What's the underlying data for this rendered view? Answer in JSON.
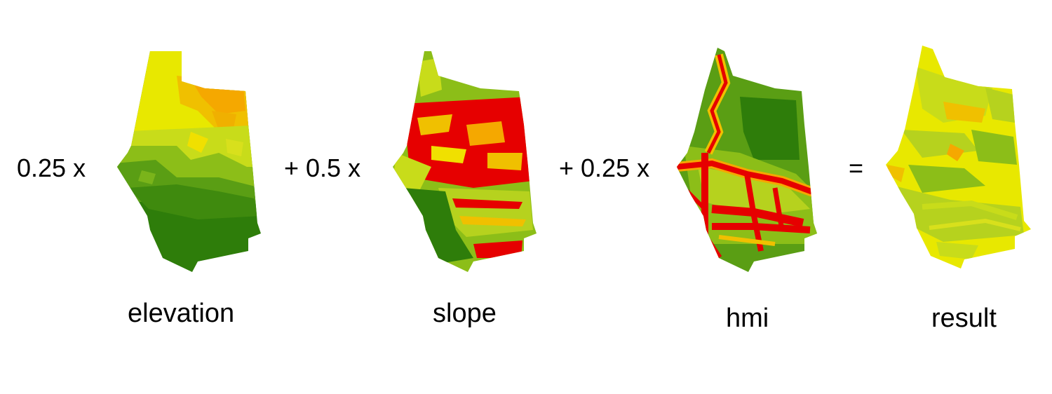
{
  "equation": {
    "coef_elevation": "0.25 x",
    "coef_slope": "+ 0.5 x",
    "coef_hmi": "+ 0.25 x",
    "equals": "="
  },
  "maps": [
    {
      "id": "elevation",
      "label": "elevation"
    },
    {
      "id": "slope",
      "label": "slope"
    },
    {
      "id": "hmi",
      "label": "hmi"
    },
    {
      "id": "result",
      "label": "result"
    }
  ],
  "colors": {
    "dark_green": "#2e7d0a",
    "green": "#5a9e14",
    "yellow_green": "#b6d21e",
    "yellow": "#f0f000",
    "orange": "#f5a800",
    "red": "#e60000"
  }
}
